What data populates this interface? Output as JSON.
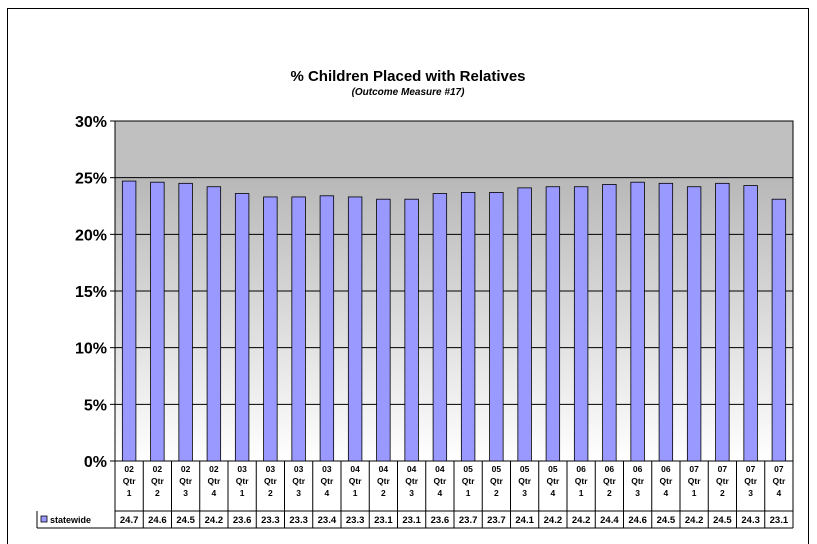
{
  "chart_data": {
    "type": "bar",
    "title": "% Children Placed with Relatives",
    "subtitle": "(Outcome Measure #17)",
    "xlabel": "",
    "ylabel": "",
    "ylim": [
      0,
      30
    ],
    "y_ticks": [
      "0%",
      "5%",
      "10%",
      "15%",
      "20%",
      "25%",
      "30%"
    ],
    "categories": [
      [
        "02",
        "Qtr",
        "1"
      ],
      [
        "02",
        "Qtr",
        "2"
      ],
      [
        "02",
        "Qtr",
        "3"
      ],
      [
        "02",
        "Qtr",
        "4"
      ],
      [
        "03",
        "Qtr",
        "1"
      ],
      [
        "03",
        "Qtr",
        "2"
      ],
      [
        "03",
        "Qtr",
        "3"
      ],
      [
        "03",
        "Qtr",
        "4"
      ],
      [
        "04",
        "Qtr",
        "1"
      ],
      [
        "04",
        "Qtr",
        "2"
      ],
      [
        "04",
        "Qtr",
        "3"
      ],
      [
        "04",
        "Qtr",
        "4"
      ],
      [
        "05",
        "Qtr",
        "1"
      ],
      [
        "05",
        "Qtr",
        "2"
      ],
      [
        "05",
        "Qtr",
        "3"
      ],
      [
        "05",
        "Qtr",
        "4"
      ],
      [
        "06",
        "Qtr",
        "1"
      ],
      [
        "06",
        "Qtr",
        "2"
      ],
      [
        "06",
        "Qtr",
        "3"
      ],
      [
        "06",
        "Qtr",
        "4"
      ],
      [
        "07",
        "Qtr",
        "1"
      ],
      [
        "07",
        "Qtr",
        "2"
      ],
      [
        "07",
        "Qtr",
        "3"
      ],
      [
        "07",
        "Qtr",
        "4"
      ]
    ],
    "series": [
      {
        "name": "statewide",
        "values": [
          24.7,
          24.6,
          24.5,
          24.2,
          23.6,
          23.3,
          23.3,
          23.4,
          23.3,
          23.1,
          23.1,
          23.6,
          23.7,
          23.7,
          24.1,
          24.2,
          24.2,
          24.4,
          24.6,
          24.5,
          24.2,
          24.5,
          24.3,
          23.1
        ]
      }
    ],
    "grid": true,
    "legend": "data-table-bottom",
    "colors": {
      "bar": "#9999ff",
      "bar_edge": "#000000",
      "band_top": "#c0c0c0",
      "gradient_bottom": "#ffffff",
      "above_target": "#c0c0c0"
    }
  }
}
